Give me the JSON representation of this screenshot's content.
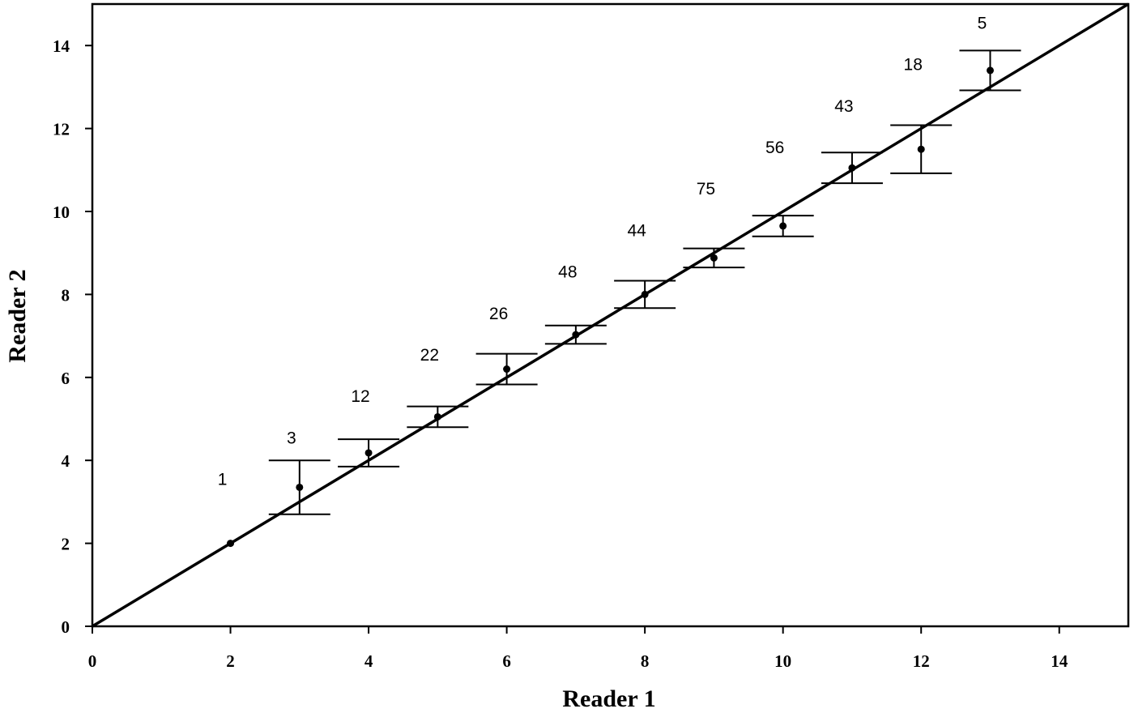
{
  "chart_data": {
    "type": "scatter",
    "xlabel": "Reader 1",
    "ylabel": "Reader 2",
    "xlim": [
      0,
      15
    ],
    "ylim": [
      0,
      15
    ],
    "xticks": [
      0,
      2,
      4,
      6,
      8,
      10,
      12,
      14
    ],
    "yticks": [
      0,
      2,
      4,
      6,
      8,
      10,
      12,
      14
    ],
    "identity_line": true,
    "series": [
      {
        "color": "#000000",
        "x": [
          2,
          3,
          4,
          5,
          6,
          7,
          8,
          9,
          10,
          11,
          12,
          13
        ],
        "values": [
          2.0,
          3.35,
          4.18,
          5.05,
          6.2,
          7.03,
          8.0,
          8.88,
          9.65,
          11.05,
          11.5,
          13.4
        ],
        "errors": [
          0,
          0.65,
          0.33,
          0.25,
          0.37,
          0.22,
          0.33,
          0.23,
          0.25,
          0.37,
          0.58,
          0.48
        ],
        "point_labels": [
          "1",
          "3",
          "12",
          "22",
          "26",
          "48",
          "44",
          "75",
          "56",
          "43",
          "18",
          "5"
        ]
      }
    ]
  }
}
